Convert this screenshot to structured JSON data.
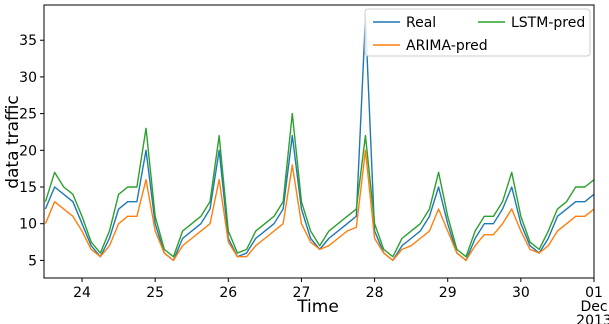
{
  "chart_data": {
    "type": "line",
    "xlabel": "Time",
    "ylabel": "data traffic",
    "x": [
      23.5,
      23.625,
      23.75,
      23.875,
      24,
      24.125,
      24.25,
      24.375,
      24.5,
      24.625,
      24.75,
      24.875,
      25,
      25.125,
      25.25,
      25.375,
      25.5,
      25.625,
      25.75,
      25.875,
      26,
      26.125,
      26.25,
      26.375,
      26.5,
      26.625,
      26.75,
      26.875,
      27,
      27.125,
      27.25,
      27.375,
      27.5,
      27.625,
      27.75,
      27.875,
      28,
      28.125,
      28.25,
      28.375,
      28.5,
      28.625,
      28.75,
      28.875,
      29,
      29.125,
      29.25,
      29.375,
      29.5,
      29.625,
      29.75,
      29.875,
      30,
      30.125,
      30.25,
      30.375,
      30.5,
      30.625,
      30.75,
      30.875,
      31
    ],
    "series": [
      {
        "name": "Real",
        "color": "#1f77b4",
        "values": [
          12,
          15,
          14,
          13,
          10,
          7,
          5.5,
          8,
          12,
          13,
          13,
          20,
          10,
          6,
          5,
          8,
          9,
          10,
          12,
          20,
          8,
          5.5,
          6,
          8,
          9,
          10,
          12,
          22,
          12,
          8,
          6.5,
          8,
          9,
          10,
          11,
          38,
          9,
          6,
          5,
          7,
          8,
          9,
          11,
          15,
          10,
          6,
          5,
          8,
          10,
          10,
          12,
          15,
          10,
          7,
          6,
          8,
          11,
          12,
          13,
          13,
          14
        ]
      },
      {
        "name": "ARIMA-pred",
        "color": "#ff7f0e",
        "values": [
          10,
          13,
          12,
          11,
          9,
          6.5,
          5.5,
          7,
          10,
          11,
          11,
          16,
          9,
          6,
          5,
          7,
          8,
          9,
          10,
          16,
          7.5,
          5.5,
          5.5,
          7,
          8,
          9,
          10,
          18,
          10,
          7.5,
          6.5,
          7,
          8,
          9,
          9.5,
          20,
          8,
          6,
          5,
          6.5,
          7,
          8,
          9,
          12,
          9,
          6,
          5,
          7,
          8.5,
          8.5,
          10,
          12,
          9,
          6.5,
          6,
          7,
          9,
          10,
          11,
          11,
          12
        ]
      },
      {
        "name": "LSTM-pred",
        "color": "#2ca02c",
        "values": [
          13,
          17,
          15,
          14,
          11,
          7.5,
          6,
          9,
          14,
          15,
          15,
          23,
          11,
          6.5,
          5.5,
          9,
          10,
          11,
          13,
          22,
          9,
          6,
          6.5,
          9,
          10,
          11,
          13,
          25,
          13,
          9,
          7,
          9,
          10,
          11,
          12,
          22,
          10,
          6.5,
          5.5,
          8,
          9,
          10,
          12,
          17,
          11,
          6.5,
          5.5,
          9,
          11,
          11,
          13,
          17,
          11,
          7.5,
          6.5,
          9,
          12,
          13,
          15,
          15,
          16
        ]
      }
    ],
    "xlim": [
      23.48,
      31
    ],
    "xticks": [
      24,
      25,
      26,
      27,
      28,
      29,
      30,
      {
        "value": 31,
        "label": "01\nDec\n2013"
      }
    ],
    "ylim": [
      2.6,
      39.8
    ],
    "yticks": [
      5,
      10,
      15,
      20,
      25,
      30,
      35
    ],
    "legend": "upper right"
  }
}
